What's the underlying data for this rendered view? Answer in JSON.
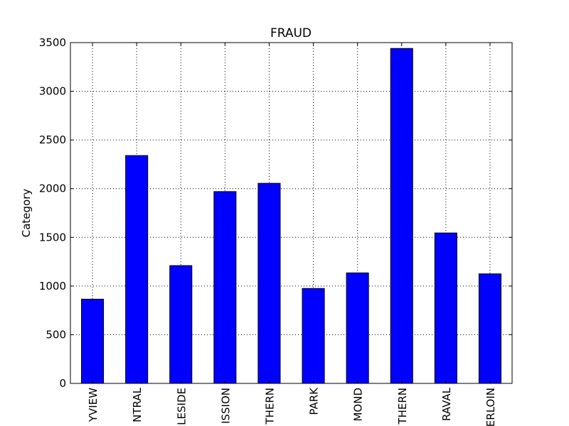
{
  "chart_data": {
    "type": "bar",
    "title": "FRAUD",
    "xlabel": "",
    "ylabel": "Category",
    "categories": [
      "YVIEW",
      "NTRAL",
      "LESIDE",
      "ISSION",
      "THERN",
      "PARK",
      "MOND",
      "THERN",
      "RAVAL",
      "ERLOIN"
    ],
    "values": [
      865,
      2340,
      1210,
      1970,
      2055,
      975,
      1135,
      3440,
      1545,
      1125
    ],
    "ylim": [
      0,
      3500
    ],
    "yticks": [
      "0",
      "500",
      "1000",
      "1500",
      "2000",
      "2500",
      "3000",
      "3500"
    ],
    "grid": true,
    "bar_color": "#0000ff",
    "edge_color": "#000000"
  }
}
